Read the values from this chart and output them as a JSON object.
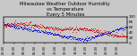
{
  "title": "Milwaukee Weather Outdoor Humidity\nvs Temperature\nEvery 5 Minutes",
  "title_fontsize": 3.8,
  "background_color": "#c8c8c8",
  "plot_bg_color": "#c8c8c8",
  "blue_color": "#0000cc",
  "red_color": "#cc0000",
  "marker_size": 1.2,
  "y_tick_fontsize": 3.0,
  "x_tick_fontsize": 2.5,
  "ylim_right": [
    0,
    100
  ],
  "n_points": 288,
  "grid_color": "#aaaaaa",
  "grid_alpha": 0.5
}
